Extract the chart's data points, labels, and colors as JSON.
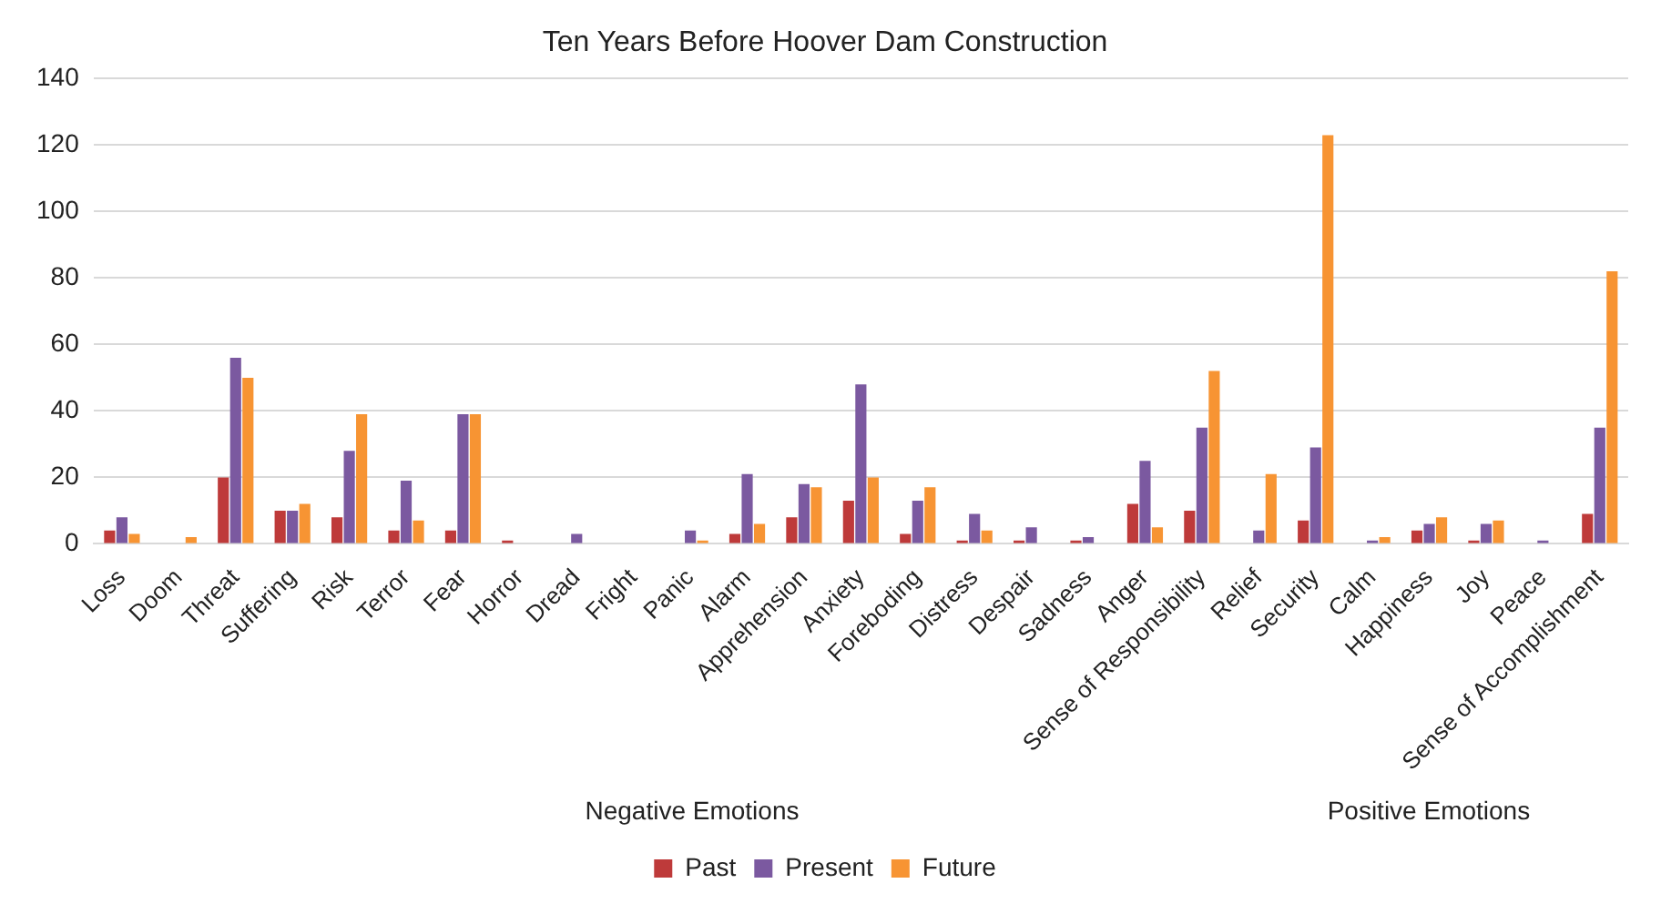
{
  "chart_data": {
    "type": "bar",
    "title": "Ten Years Before Hoover Dam Construction",
    "categories": [
      "Loss",
      "Doom",
      "Threat",
      "Suffering",
      "Risk",
      "Terror",
      "Fear",
      "Horror",
      "Dread",
      "Fright",
      "Panic",
      "Alarm",
      "Apprehension",
      "Anxiety",
      "Foreboding",
      "Distress",
      "Despair",
      "Sadness",
      "Anger",
      "Sense of Responsibility",
      "Relief",
      "Security",
      "Calm",
      "Happiness",
      "Joy",
      "Peace",
      "Sense of Accomplishment"
    ],
    "series": [
      {
        "name": "Past",
        "color": "#be3a3a",
        "values": [
          4,
          0,
          20,
          10,
          8,
          4,
          4,
          1,
          0,
          0,
          0,
          3,
          8,
          13,
          3,
          1,
          1,
          1,
          12,
          10,
          0,
          7,
          0,
          4,
          1,
          0,
          9
        ]
      },
      {
        "name": "Present",
        "color": "#7b59a0",
        "values": [
          8,
          0,
          56,
          10,
          28,
          19,
          39,
          0,
          3,
          0,
          4,
          21,
          18,
          48,
          13,
          9,
          5,
          2,
          25,
          35,
          4,
          29,
          1,
          6,
          6,
          1,
          35
        ]
      },
      {
        "name": "Future",
        "color": "#f79433",
        "values": [
          3,
          2,
          50,
          12,
          39,
          7,
          39,
          0,
          0,
          0,
          1,
          6,
          17,
          20,
          17,
          4,
          0,
          0,
          5,
          52,
          21,
          123,
          2,
          8,
          7,
          0,
          82
        ]
      }
    ],
    "ylim": [
      0,
      140
    ],
    "yticks": [
      0,
      20,
      40,
      60,
      80,
      100,
      120,
      140
    ],
    "grid": "y",
    "legend": "bottom",
    "annotations": [
      "Negative Emotions",
      "Positive Emotions"
    ]
  }
}
